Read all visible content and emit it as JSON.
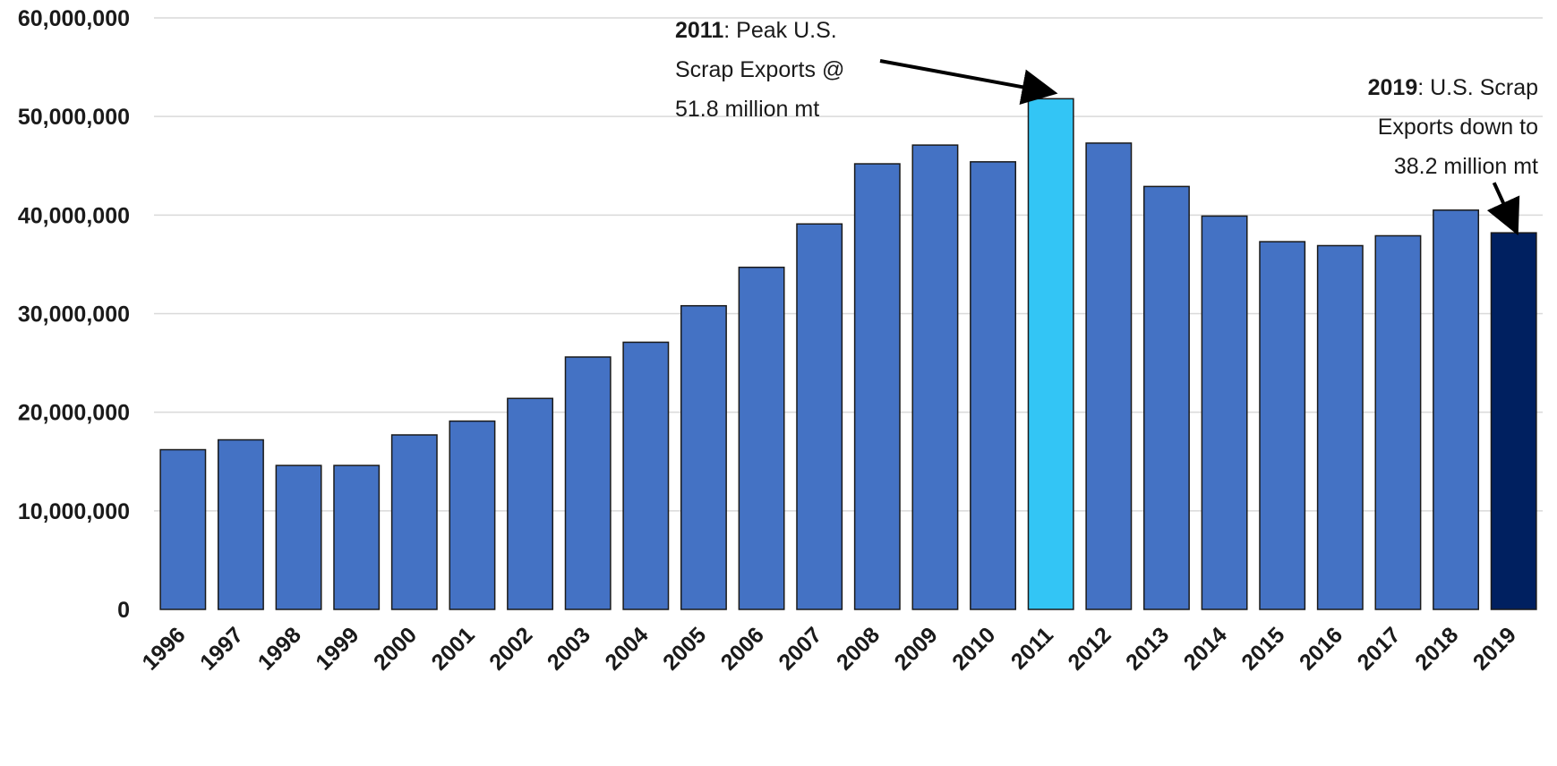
{
  "chart_data": {
    "type": "bar",
    "title": "",
    "xlabel": "",
    "ylabel": "",
    "ylim": [
      0,
      60000000
    ],
    "yticks": [
      0,
      10000000,
      20000000,
      30000000,
      40000000,
      50000000,
      60000000
    ],
    "ytick_labels": [
      "0",
      "10,000,000",
      "20,000,000",
      "30,000,000",
      "40,000,000",
      "50,000,000",
      "60,000,000"
    ],
    "grid": "horizontal",
    "legend": "none",
    "categories": [
      "1996",
      "1997",
      "1998",
      "1999",
      "2000",
      "2001",
      "2002",
      "2003",
      "2004",
      "2005",
      "2006",
      "2007",
      "2008",
      "2009",
      "2010",
      "2011",
      "2012",
      "2013",
      "2014",
      "2015",
      "2016",
      "2017",
      "2018",
      "2019"
    ],
    "values": [
      16200000,
      17200000,
      14600000,
      14600000,
      17700000,
      19100000,
      21400000,
      25600000,
      27100000,
      30800000,
      34700000,
      39100000,
      45200000,
      47100000,
      45400000,
      51800000,
      47300000,
      42900000,
      39900000,
      37300000,
      36900000,
      37900000,
      40500000,
      38200000
    ],
    "colors": {
      "default": "#4472c4",
      "highlight_peak": "#33c5f5",
      "highlight_latest": "#002060"
    },
    "highlights": {
      "2011": "highlight_peak",
      "2019": "highlight_latest"
    },
    "annotations": [
      {
        "id": "peak",
        "target": "2011",
        "lines": [
          {
            "bold": "2011",
            "text": ": Peak U.S."
          },
          {
            "bold": "",
            "text": "Scrap Exports @"
          },
          {
            "bold": "",
            "text": "51.8 million mt"
          }
        ]
      },
      {
        "id": "latest",
        "target": "2019",
        "lines": [
          {
            "bold": "2019",
            "text": ": U.S. Scrap"
          },
          {
            "bold": "",
            "text": "Exports down to"
          },
          {
            "bold": "",
            "text": "38.2 million mt"
          }
        ]
      }
    ]
  }
}
